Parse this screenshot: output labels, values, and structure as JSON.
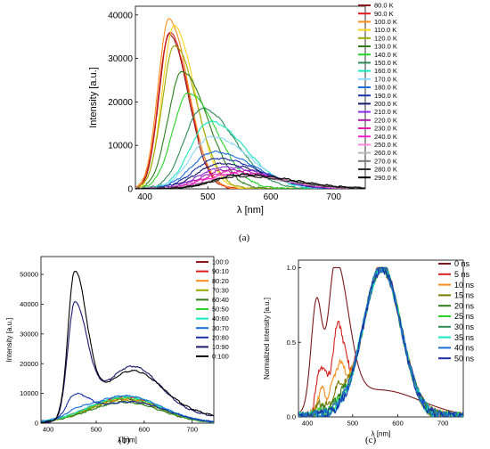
{
  "captions": [
    "(a)",
    "(b)",
    "(c)"
  ],
  "chart_data": [
    {
      "id": "a",
      "type": "line",
      "xlabel": "λ [nm]",
      "ylabel": "Intensity [a.u.]",
      "xlim": [
        385,
        750
      ],
      "ylim": [
        0,
        42000
      ],
      "xticks": [
        400,
        500,
        600,
        700
      ],
      "yticks": [
        0,
        10000,
        20000,
        30000,
        40000
      ],
      "legend_position": "right",
      "series": [
        {
          "name": "80.0 K",
          "color": "#8b1a1a",
          "peak_x": 439,
          "peak_y": 35500,
          "width": 30
        },
        {
          "name": "90.0 K",
          "color": "#e01b1b",
          "peak_x": 439,
          "peak_y": 36000,
          "width": 31
        },
        {
          "name": "100.0 K",
          "color": "#ff8c1a",
          "peak_x": 438,
          "peak_y": 39000,
          "width": 31
        },
        {
          "name": "110.0 K",
          "color": "#ffd21a",
          "peak_x": 446,
          "peak_y": 37500,
          "width": 33
        },
        {
          "name": "120.0 K",
          "color": "#9aa800",
          "peak_x": 447,
          "peak_y": 33000,
          "width": 35
        },
        {
          "name": "130.0 K",
          "color": "#2e7d1a",
          "peak_x": 459,
          "peak_y": 27000,
          "width": 40
        },
        {
          "name": "140.0 K",
          "color": "#28d428",
          "peak_x": 469,
          "peak_y": 22000,
          "width": 45
        },
        {
          "name": "150.0 K",
          "color": "#2e8b57",
          "peak_x": 491,
          "peak_y": 18500,
          "width": 52
        },
        {
          "name": "160.0 K",
          "color": "#18e8c0",
          "peak_x": 503,
          "peak_y": 15500,
          "width": 56
        },
        {
          "name": "170.0 K",
          "color": "#8fd8ff",
          "peak_x": 506,
          "peak_y": 12000,
          "width": 60
        },
        {
          "name": "180.0 K",
          "color": "#1a6fd8",
          "peak_x": 510,
          "peak_y": 8500,
          "width": 64
        },
        {
          "name": "190.0 K",
          "color": "#1a2fa8",
          "peak_x": 515,
          "peak_y": 7000,
          "width": 66
        },
        {
          "name": "200.0 K",
          "color": "#1a1a6e",
          "peak_x": 520,
          "peak_y": 5800,
          "width": 68
        },
        {
          "name": "210.0 K",
          "color": "#8a2be2",
          "peak_x": 525,
          "peak_y": 5000,
          "width": 70
        },
        {
          "name": "220.0 K",
          "color": "#b01aa8",
          "peak_x": 530,
          "peak_y": 4400,
          "width": 72
        },
        {
          "name": "230.0 K",
          "color": "#e01ab0",
          "peak_x": 535,
          "peak_y": 3900,
          "width": 74
        },
        {
          "name": "240.0 K",
          "color": "#ff1ad0",
          "peak_x": 540,
          "peak_y": 3500,
          "width": 75
        },
        {
          "name": "250.0 K",
          "color": "#ff8ad8",
          "peak_x": 545,
          "peak_y": 3200,
          "width": 76
        },
        {
          "name": "260.0 K",
          "color": "#b8b8b8",
          "peak_x": 548,
          "peak_y": 3000,
          "width": 77
        },
        {
          "name": "270.0 K",
          "color": "#7a7a7a",
          "peak_x": 550,
          "peak_y": 3200,
          "width": 78
        },
        {
          "name": "280.0 K",
          "color": "#333333",
          "peak_x": 552,
          "peak_y": 2900,
          "width": 79
        },
        {
          "name": "290.0 K",
          "color": "#000000",
          "peak_x": 555,
          "peak_y": 3300,
          "width": 80
        }
      ]
    },
    {
      "id": "b",
      "type": "line",
      "xlabel": "λ [nm]",
      "ylabel": "Intensity [a.u.]",
      "xlim": [
        385,
        745
      ],
      "ylim": [
        0,
        56000
      ],
      "xticks": [
        400,
        500,
        600,
        700
      ],
      "yticks": [
        0,
        10000,
        20000,
        30000,
        40000,
        50000
      ],
      "legend_position": "right",
      "series": [
        {
          "name": "100:0",
          "color": "#8b1a1a",
          "p1": [
            455,
            0,
            28
          ],
          "p2": [
            560,
            8000,
            75
          ]
        },
        {
          "name": "90:10",
          "color": "#e01b1b",
          "p1": [
            455,
            0,
            28
          ],
          "p2": [
            560,
            8800,
            75
          ]
        },
        {
          "name": "80:20",
          "color": "#ff8c1a",
          "p1": [
            455,
            0,
            28
          ],
          "p2": [
            560,
            8200,
            75
          ]
        },
        {
          "name": "70:30",
          "color": "#9aa800",
          "p1": [
            455,
            0,
            28
          ],
          "p2": [
            560,
            7600,
            75
          ]
        },
        {
          "name": "60:40",
          "color": "#2e7d1a",
          "p1": [
            455,
            0,
            28
          ],
          "p2": [
            560,
            7000,
            75
          ]
        },
        {
          "name": "50:50",
          "color": "#28d428",
          "p1": [
            455,
            0,
            28
          ],
          "p2": [
            560,
            8400,
            75
          ]
        },
        {
          "name": "40:60",
          "color": "#18e8c0",
          "p1": [
            455,
            0,
            28
          ],
          "p2": [
            560,
            9000,
            75
          ]
        },
        {
          "name": "30:70",
          "color": "#1a6fd8",
          "p1": [
            455,
            1500,
            28
          ],
          "p2": [
            560,
            9200,
            75
          ]
        },
        {
          "name": "20:80",
          "color": "#1a2fa8",
          "p1": [
            455,
            7500,
            30
          ],
          "p2": [
            570,
            7200,
            75
          ]
        },
        {
          "name": "10:90",
          "color": "#1a1a6e",
          "p1": [
            455,
            38000,
            26
          ],
          "p2": [
            575,
            19000,
            60
          ]
        },
        {
          "name": "0:100",
          "color": "#000000",
          "p1": [
            455,
            48000,
            25
          ],
          "p2": [
            575,
            17500,
            65
          ]
        }
      ]
    },
    {
      "id": "c",
      "type": "line",
      "xlabel": "λ [nm]",
      "ylabel": "Normalized intensity [a.u.]",
      "xlim": [
        380,
        745
      ],
      "ylim": [
        0,
        1.05
      ],
      "xticks": [
        400,
        500,
        600,
        700
      ],
      "yticks": [
        0.0,
        0.5,
        1.0
      ],
      "legend_position": "right",
      "series": [
        {
          "name": "0 ns",
          "color": "#7a1a1a",
          "kind": "early"
        },
        {
          "name": "5 ns",
          "color": "#d42020",
          "blue": 0.55
        },
        {
          "name": "10 ns",
          "color": "#ff8c1a",
          "blue": 0.28
        },
        {
          "name": "15 ns",
          "color": "#7a7a00",
          "blue": 0.14
        },
        {
          "name": "20 ns",
          "color": "#2e7d1a",
          "blue": 0.08
        },
        {
          "name": "25 ns",
          "color": "#28d428",
          "blue": 0.04
        },
        {
          "name": "30 ns",
          "color": "#2e8b57",
          "blue": 0.03
        },
        {
          "name": "35 ns",
          "color": "#18e8c0",
          "blue": 0.02
        },
        {
          "name": "40 ns",
          "color": "#1a6fd8",
          "blue": 0.02
        },
        {
          "name": "50 ns",
          "color": "#1a2fa8",
          "blue": 0.01
        }
      ]
    }
  ]
}
